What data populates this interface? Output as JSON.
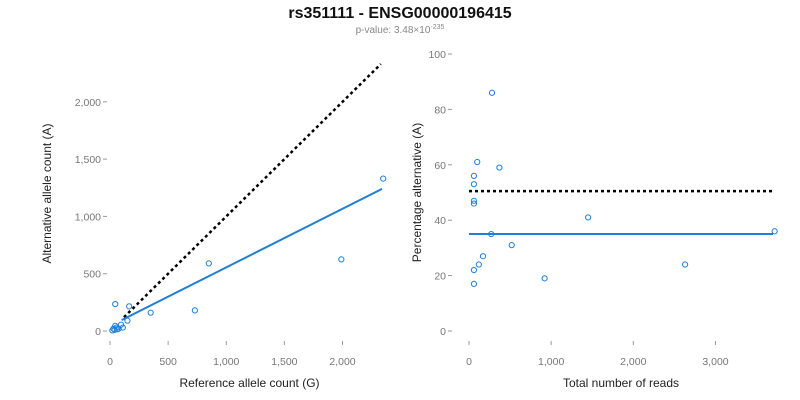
{
  "header": {
    "title": "rs351111 - ENSG00000196415",
    "pvalue_prefix": "p-value: 3.48×10",
    "pvalue_exponent": "-235"
  },
  "chart_data": [
    {
      "type": "scatter",
      "xlabel": "Reference allele count (G)",
      "ylabel": "Alternative allele count (A)",
      "xlim": [
        0,
        2400
      ],
      "ylim": [
        0,
        2400
      ],
      "xticks": [
        0,
        500,
        1000,
        1500,
        2000
      ],
      "xtick_labels": [
        "0",
        "500",
        "1,000",
        "1,500",
        "2,000"
      ],
      "yticks": [
        0,
        500,
        1000,
        1500,
        2000
      ],
      "ytick_labels": [
        "0",
        "500",
        "1,000",
        "1,500",
        "2,000"
      ],
      "point_color": "#1f7fd6",
      "points": [
        {
          "x": 20,
          "y": 5
        },
        {
          "x": 30,
          "y": 20
        },
        {
          "x": 40,
          "y": 10
        },
        {
          "x": 45,
          "y": 45
        },
        {
          "x": 55,
          "y": 30
        },
        {
          "x": 60,
          "y": 15
        },
        {
          "x": 75,
          "y": 20
        },
        {
          "x": 95,
          "y": 55
        },
        {
          "x": 110,
          "y": 30
        },
        {
          "x": 150,
          "y": 90
        },
        {
          "x": 45,
          "y": 235
        },
        {
          "x": 165,
          "y": 215
        },
        {
          "x": 350,
          "y": 160
        },
        {
          "x": 730,
          "y": 180
        },
        {
          "x": 850,
          "y": 590
        },
        {
          "x": 1990,
          "y": 625
        },
        {
          "x": 2350,
          "y": 1330
        }
      ],
      "fit_line": {
        "x": [
          100,
          2340
        ],
        "y": [
          95,
          1240
        ],
        "color": "#1f7fd6"
      },
      "reference_line": {
        "x": [
          120,
          2330
        ],
        "y": [
          120,
          2330
        ],
        "color": "#000000",
        "style": "dotted"
      }
    },
    {
      "type": "scatter",
      "xlabel": "Total number of reads",
      "ylabel": "Percentage alternative (A)",
      "xlim": [
        0,
        3700
      ],
      "ylim": [
        0,
        100
      ],
      "xticks": [
        0,
        1000,
        2000,
        3000
      ],
      "xtick_labels": [
        "0",
        "1,000",
        "2,000",
        "3,000"
      ],
      "yticks": [
        0,
        20,
        40,
        60,
        80,
        100
      ],
      "ytick_labels": [
        "0",
        "20",
        "40",
        "60",
        "80",
        "100"
      ],
      "point_color": "#1f7fd6",
      "points": [
        {
          "x": 280,
          "y": 86
        },
        {
          "x": 100,
          "y": 61
        },
        {
          "x": 370,
          "y": 59
        },
        {
          "x": 60,
          "y": 56
        },
        {
          "x": 60,
          "y": 53
        },
        {
          "x": 60,
          "y": 47
        },
        {
          "x": 60,
          "y": 46
        },
        {
          "x": 1450,
          "y": 41
        },
        {
          "x": 270,
          "y": 35
        },
        {
          "x": 3720,
          "y": 36
        },
        {
          "x": 520,
          "y": 31
        },
        {
          "x": 170,
          "y": 27
        },
        {
          "x": 120,
          "y": 24
        },
        {
          "x": 2630,
          "y": 24
        },
        {
          "x": 60,
          "y": 22
        },
        {
          "x": 920,
          "y": 19
        },
        {
          "x": 60,
          "y": 17
        }
      ],
      "fit_line": {
        "x": [
          0,
          3700
        ],
        "y": [
          35,
          35
        ],
        "color": "#1f7fd6"
      },
      "reference_line": {
        "x": [
          0,
          3700
        ],
        "y": [
          50.5,
          50.5
        ],
        "color": "#000000",
        "style": "dotted"
      }
    }
  ]
}
